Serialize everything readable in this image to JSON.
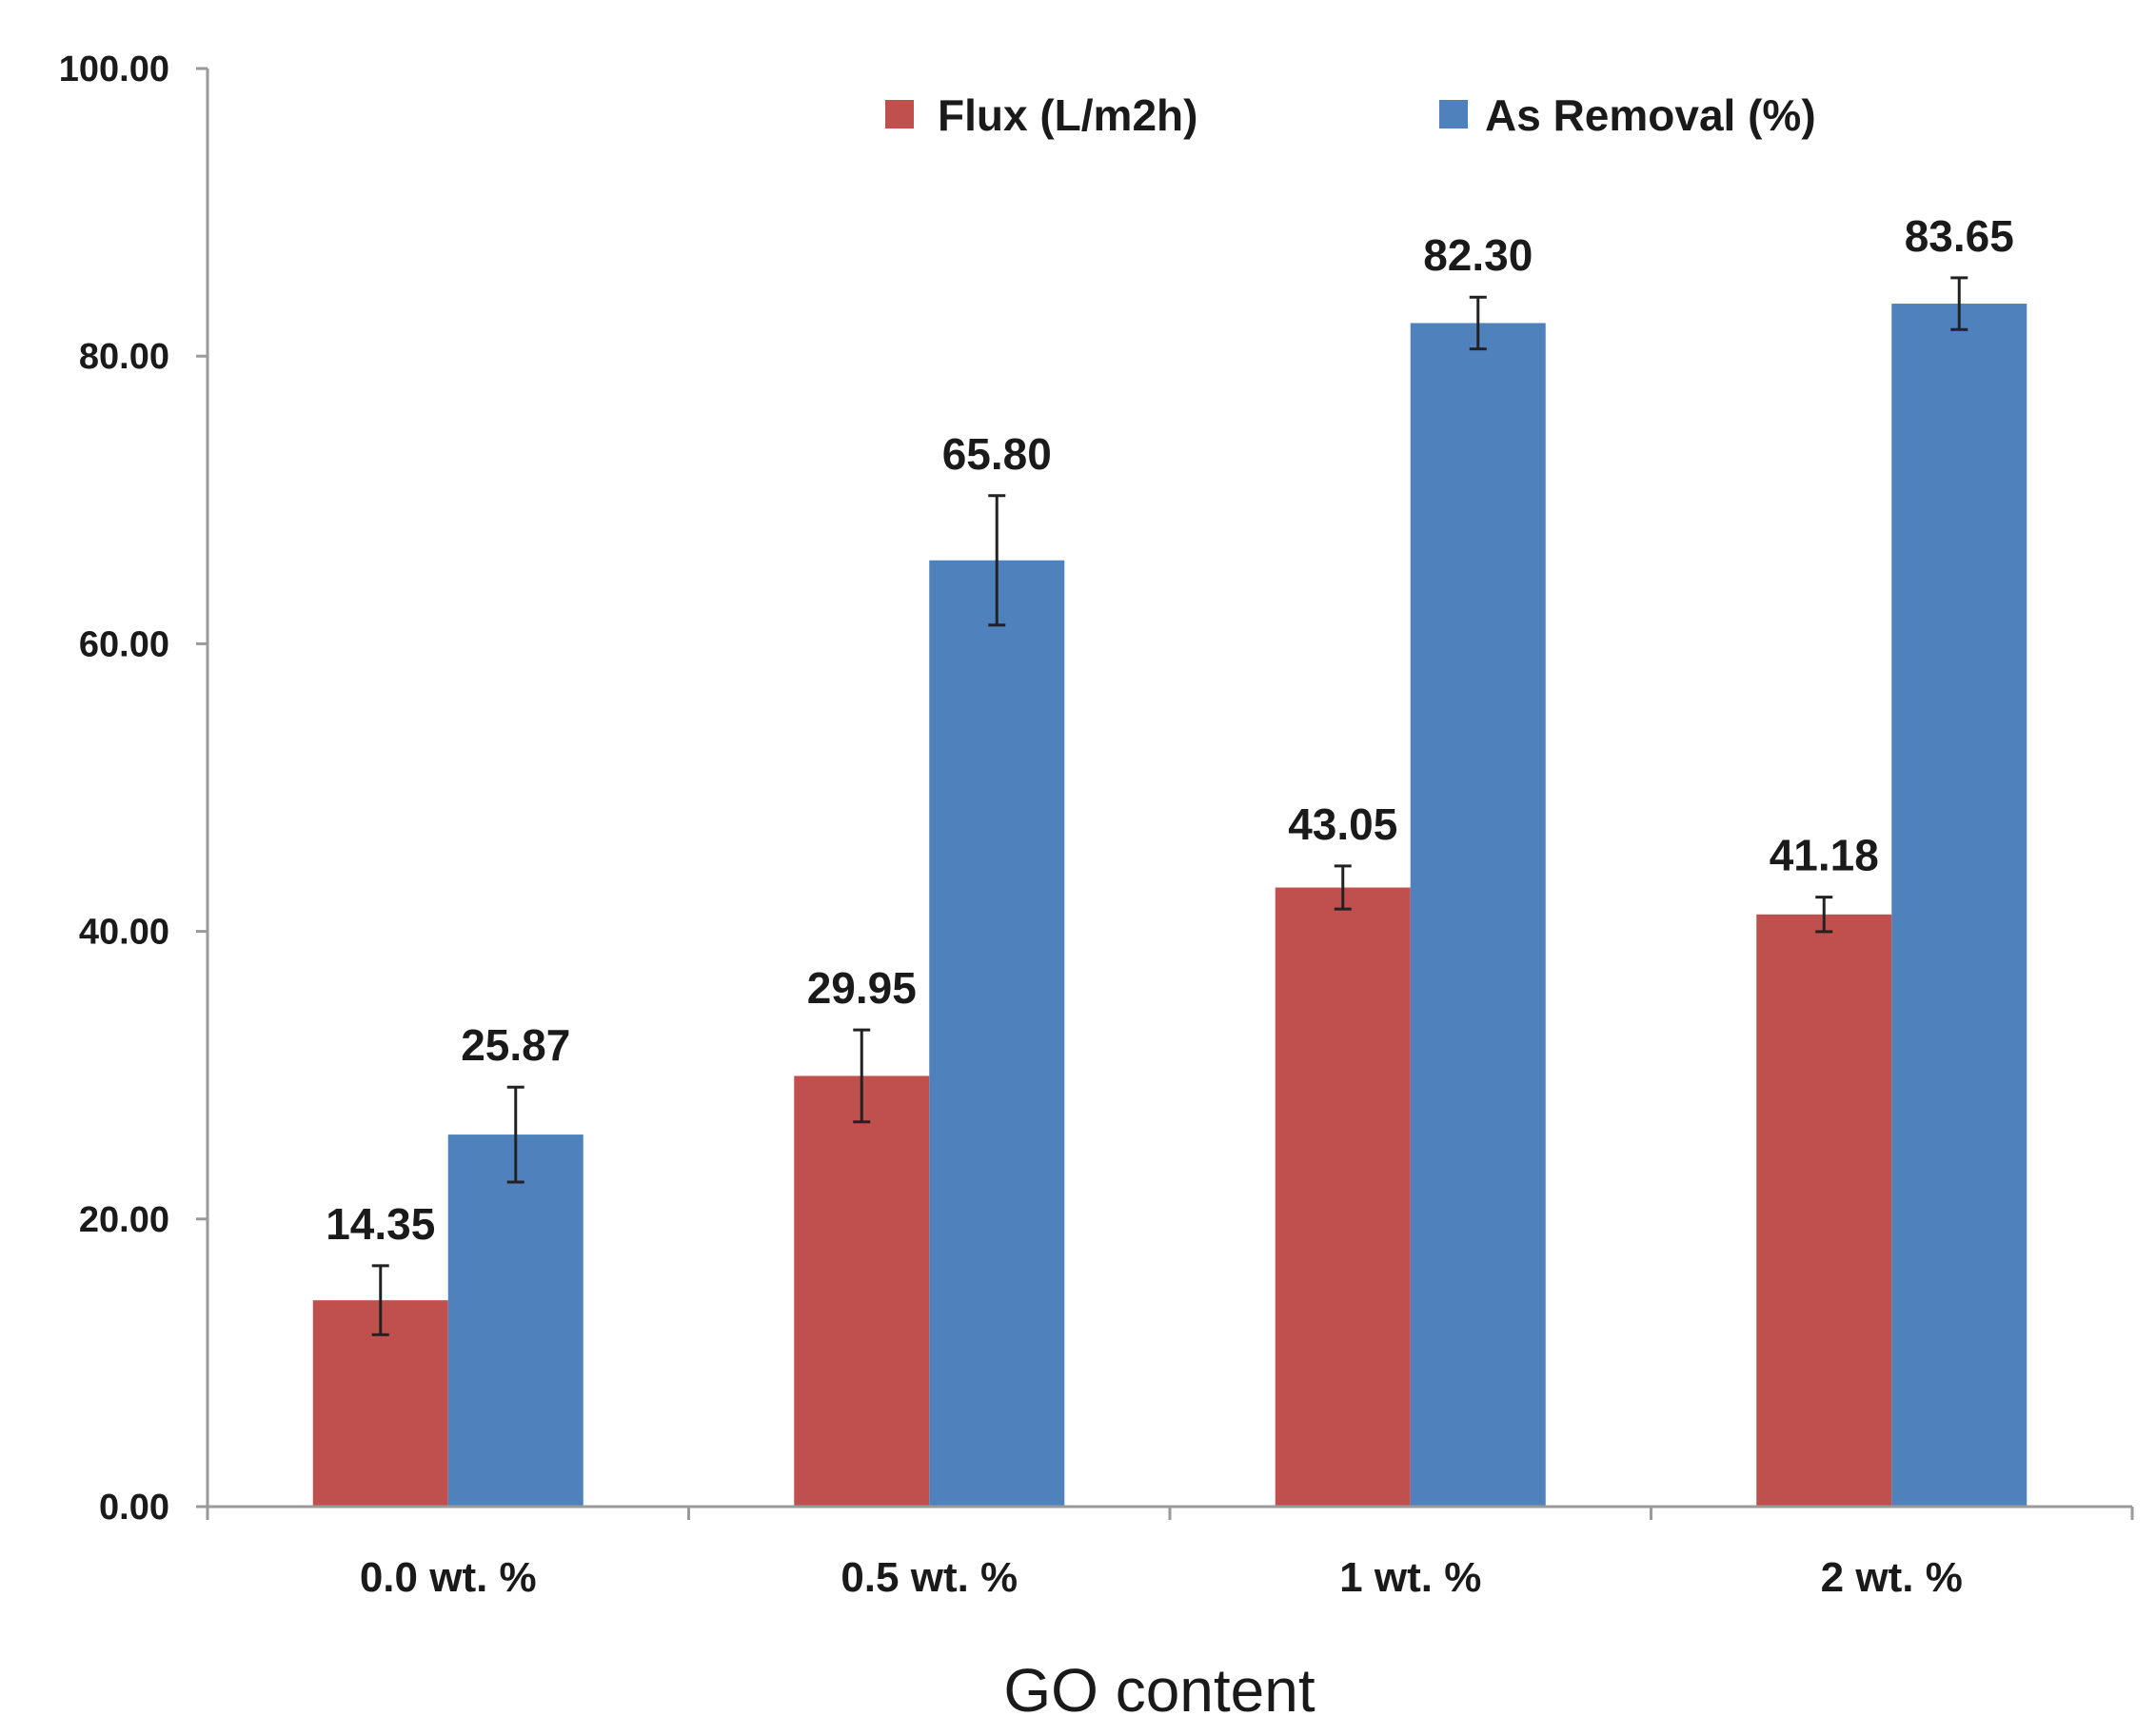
{
  "chart_data": {
    "type": "bar",
    "title": "",
    "xlabel": "GO content",
    "ylabel": "",
    "ylim": [
      0,
      100
    ],
    "yticks": [
      "0.00",
      "20.00",
      "40.00",
      "60.00",
      "80.00",
      "100.00"
    ],
    "categories": [
      "0.0 wt. %",
      "0.5 wt. %",
      "1 wt. %",
      "2 wt. %"
    ],
    "series": [
      {
        "name": "Flux (L/m2h)",
        "color": "#c0504d",
        "values": [
          14.35,
          29.95,
          43.05,
          41.18
        ],
        "labels": [
          "14.35",
          "29.95",
          "43.05",
          "41.18"
        ],
        "errors": [
          2.4,
          3.2,
          1.5,
          1.2
        ]
      },
      {
        "name": "As Removal (%)",
        "color": "#4f81bd",
        "values": [
          25.87,
          65.8,
          82.3,
          83.65
        ],
        "labels": [
          "25.87",
          "65.80",
          "82.30",
          "83.65"
        ],
        "errors": [
          3.3,
          4.5,
          1.8,
          1.8
        ]
      }
    ],
    "legend": "top-center",
    "grid": false
  }
}
